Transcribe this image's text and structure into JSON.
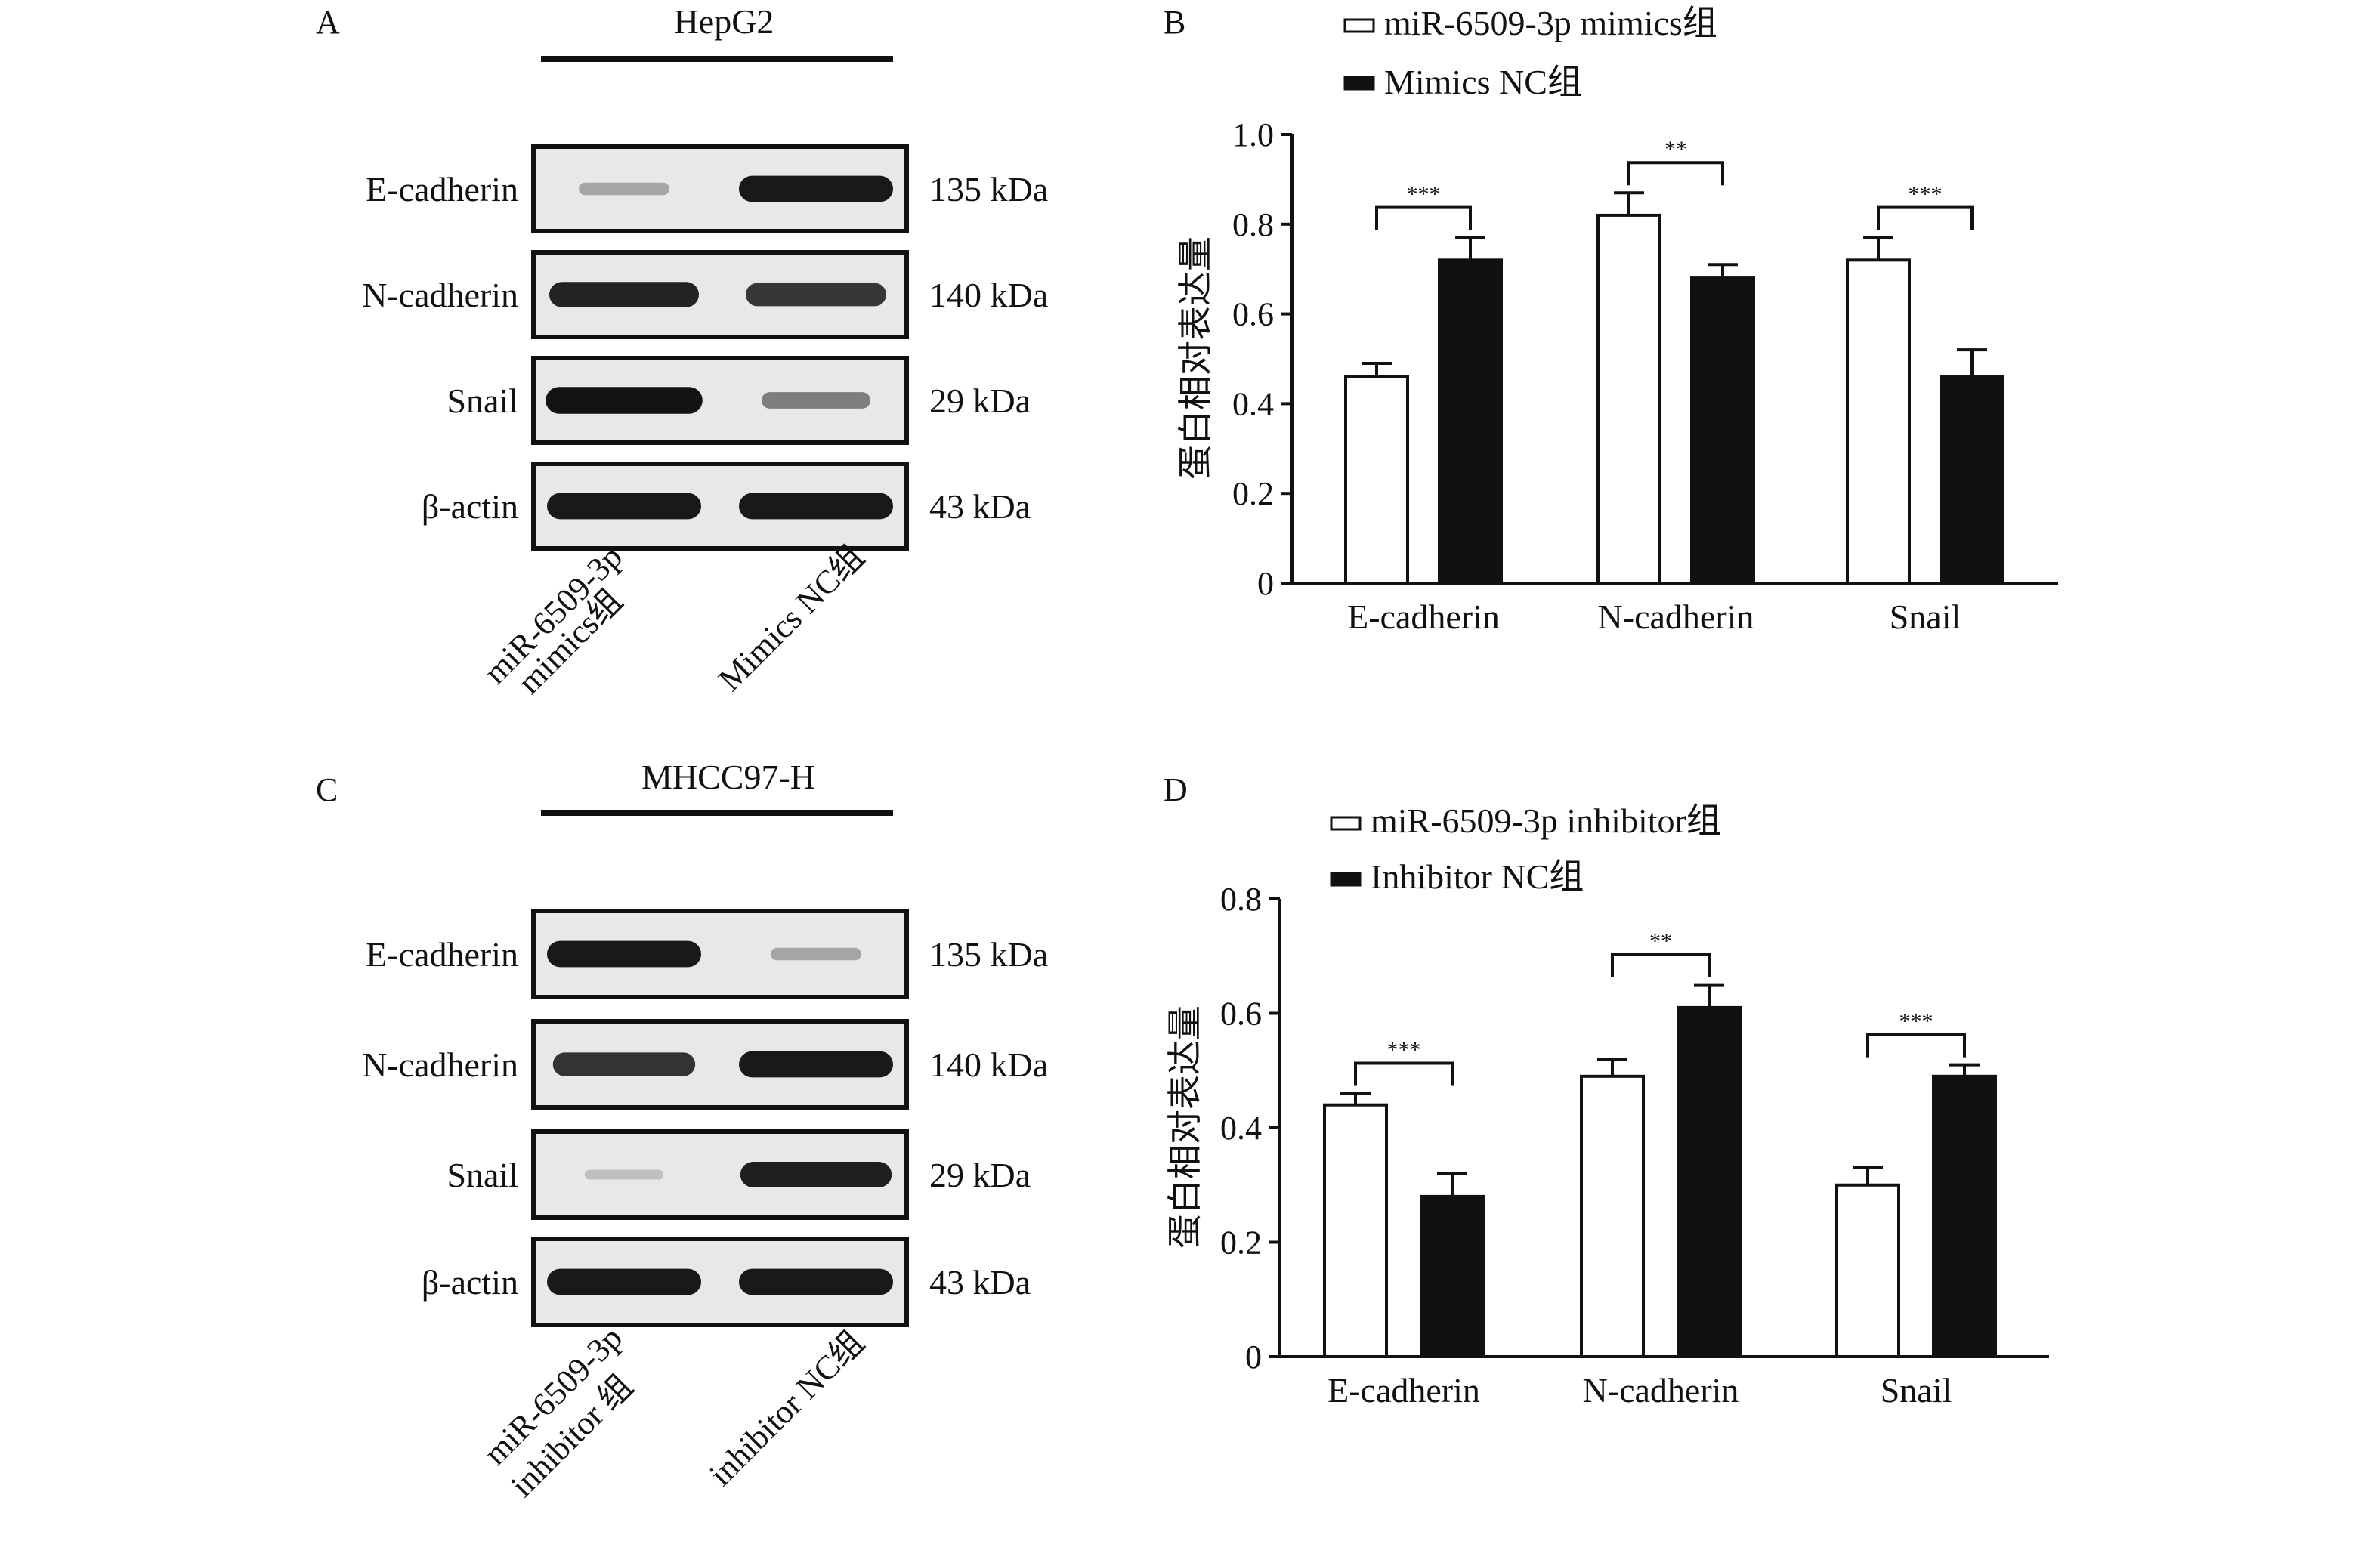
{
  "panels": {
    "A": {
      "letter": "A",
      "cell_line": "HepG2"
    },
    "B": {
      "letter": "B"
    },
    "C": {
      "letter": "C",
      "cell_line": "MHCC97-H"
    },
    "D": {
      "letter": "D"
    }
  },
  "blots": {
    "A": {
      "rows": [
        {
          "protein": "E-cadherin",
          "size": "135 kDa",
          "band_intensity": [
            0.25,
            0.95
          ]
        },
        {
          "protein": "N-cadherin",
          "size": "140 kDa",
          "band_intensity": [
            0.9,
            0.8
          ]
        },
        {
          "protein": "Snail",
          "size": "29 kDa",
          "band_intensity": [
            0.98,
            0.45
          ]
        },
        {
          "protein": "β-actin",
          "size": "43 kDa",
          "band_intensity": [
            0.95,
            0.95
          ]
        }
      ],
      "lanes": [
        {
          "line1": "miR-6509-3p",
          "line2": "mimics组"
        },
        {
          "line1": "Mimics NC组",
          "line2": ""
        }
      ]
    },
    "C": {
      "rows": [
        {
          "protein": "E-cadherin",
          "size": "135 kDa",
          "band_intensity": [
            0.95,
            0.25
          ]
        },
        {
          "protein": "N-cadherin",
          "size": "140 kDa",
          "band_intensity": [
            0.82,
            0.95
          ]
        },
        {
          "protein": "Snail",
          "size": "29 kDa",
          "band_intensity": [
            0.12,
            0.92
          ]
        },
        {
          "protein": "β-actin",
          "size": "43 kDa",
          "band_intensity": [
            0.95,
            0.95
          ]
        }
      ],
      "lanes": [
        {
          "line1": "miR-6509-3p",
          "line2": "inhibitor 组"
        },
        {
          "line1": "inhibitor NC组",
          "line2": ""
        }
      ]
    }
  },
  "chart_data": [
    {
      "panel": "B",
      "type": "bar",
      "categories": [
        "E-cadherin",
        "N-cadherin",
        "Snail"
      ],
      "series": [
        {
          "name": "miR-6509-3p mimics组",
          "fill": "#ffffff",
          "values": [
            0.46,
            0.82,
            0.72
          ],
          "errors": [
            0.03,
            0.05,
            0.05
          ]
        },
        {
          "name": "Mimics NC组",
          "fill": "#111111",
          "values": [
            0.72,
            0.68,
            0.46
          ],
          "errors": [
            0.05,
            0.03,
            0.06
          ]
        }
      ],
      "ylabel": "蛋白相对表达量",
      "ylim": [
        0,
        1.0
      ],
      "yticks": [
        "0",
        "0.2",
        "0.4",
        "0.6",
        "0.8",
        "1.0"
      ],
      "significance": [
        "***",
        "**",
        "***"
      ]
    },
    {
      "panel": "D",
      "type": "bar",
      "categories": [
        "E-cadherin",
        "N-cadherin",
        "Snail"
      ],
      "series": [
        {
          "name": "miR-6509-3p inhibitor组",
          "fill": "#ffffff",
          "values": [
            0.44,
            0.49,
            0.3
          ],
          "errors": [
            0.02,
            0.03,
            0.03
          ]
        },
        {
          "name": "Inhibitor NC组",
          "fill": "#111111",
          "values": [
            0.28,
            0.61,
            0.49
          ],
          "errors": [
            0.04,
            0.04,
            0.02
          ]
        }
      ],
      "ylabel": "蛋白相对表达量",
      "ylim": [
        0,
        0.8
      ],
      "yticks": [
        "0",
        "0.2",
        "0.4",
        "0.6",
        "0.8"
      ],
      "significance": [
        "***",
        "**",
        "***"
      ]
    }
  ]
}
